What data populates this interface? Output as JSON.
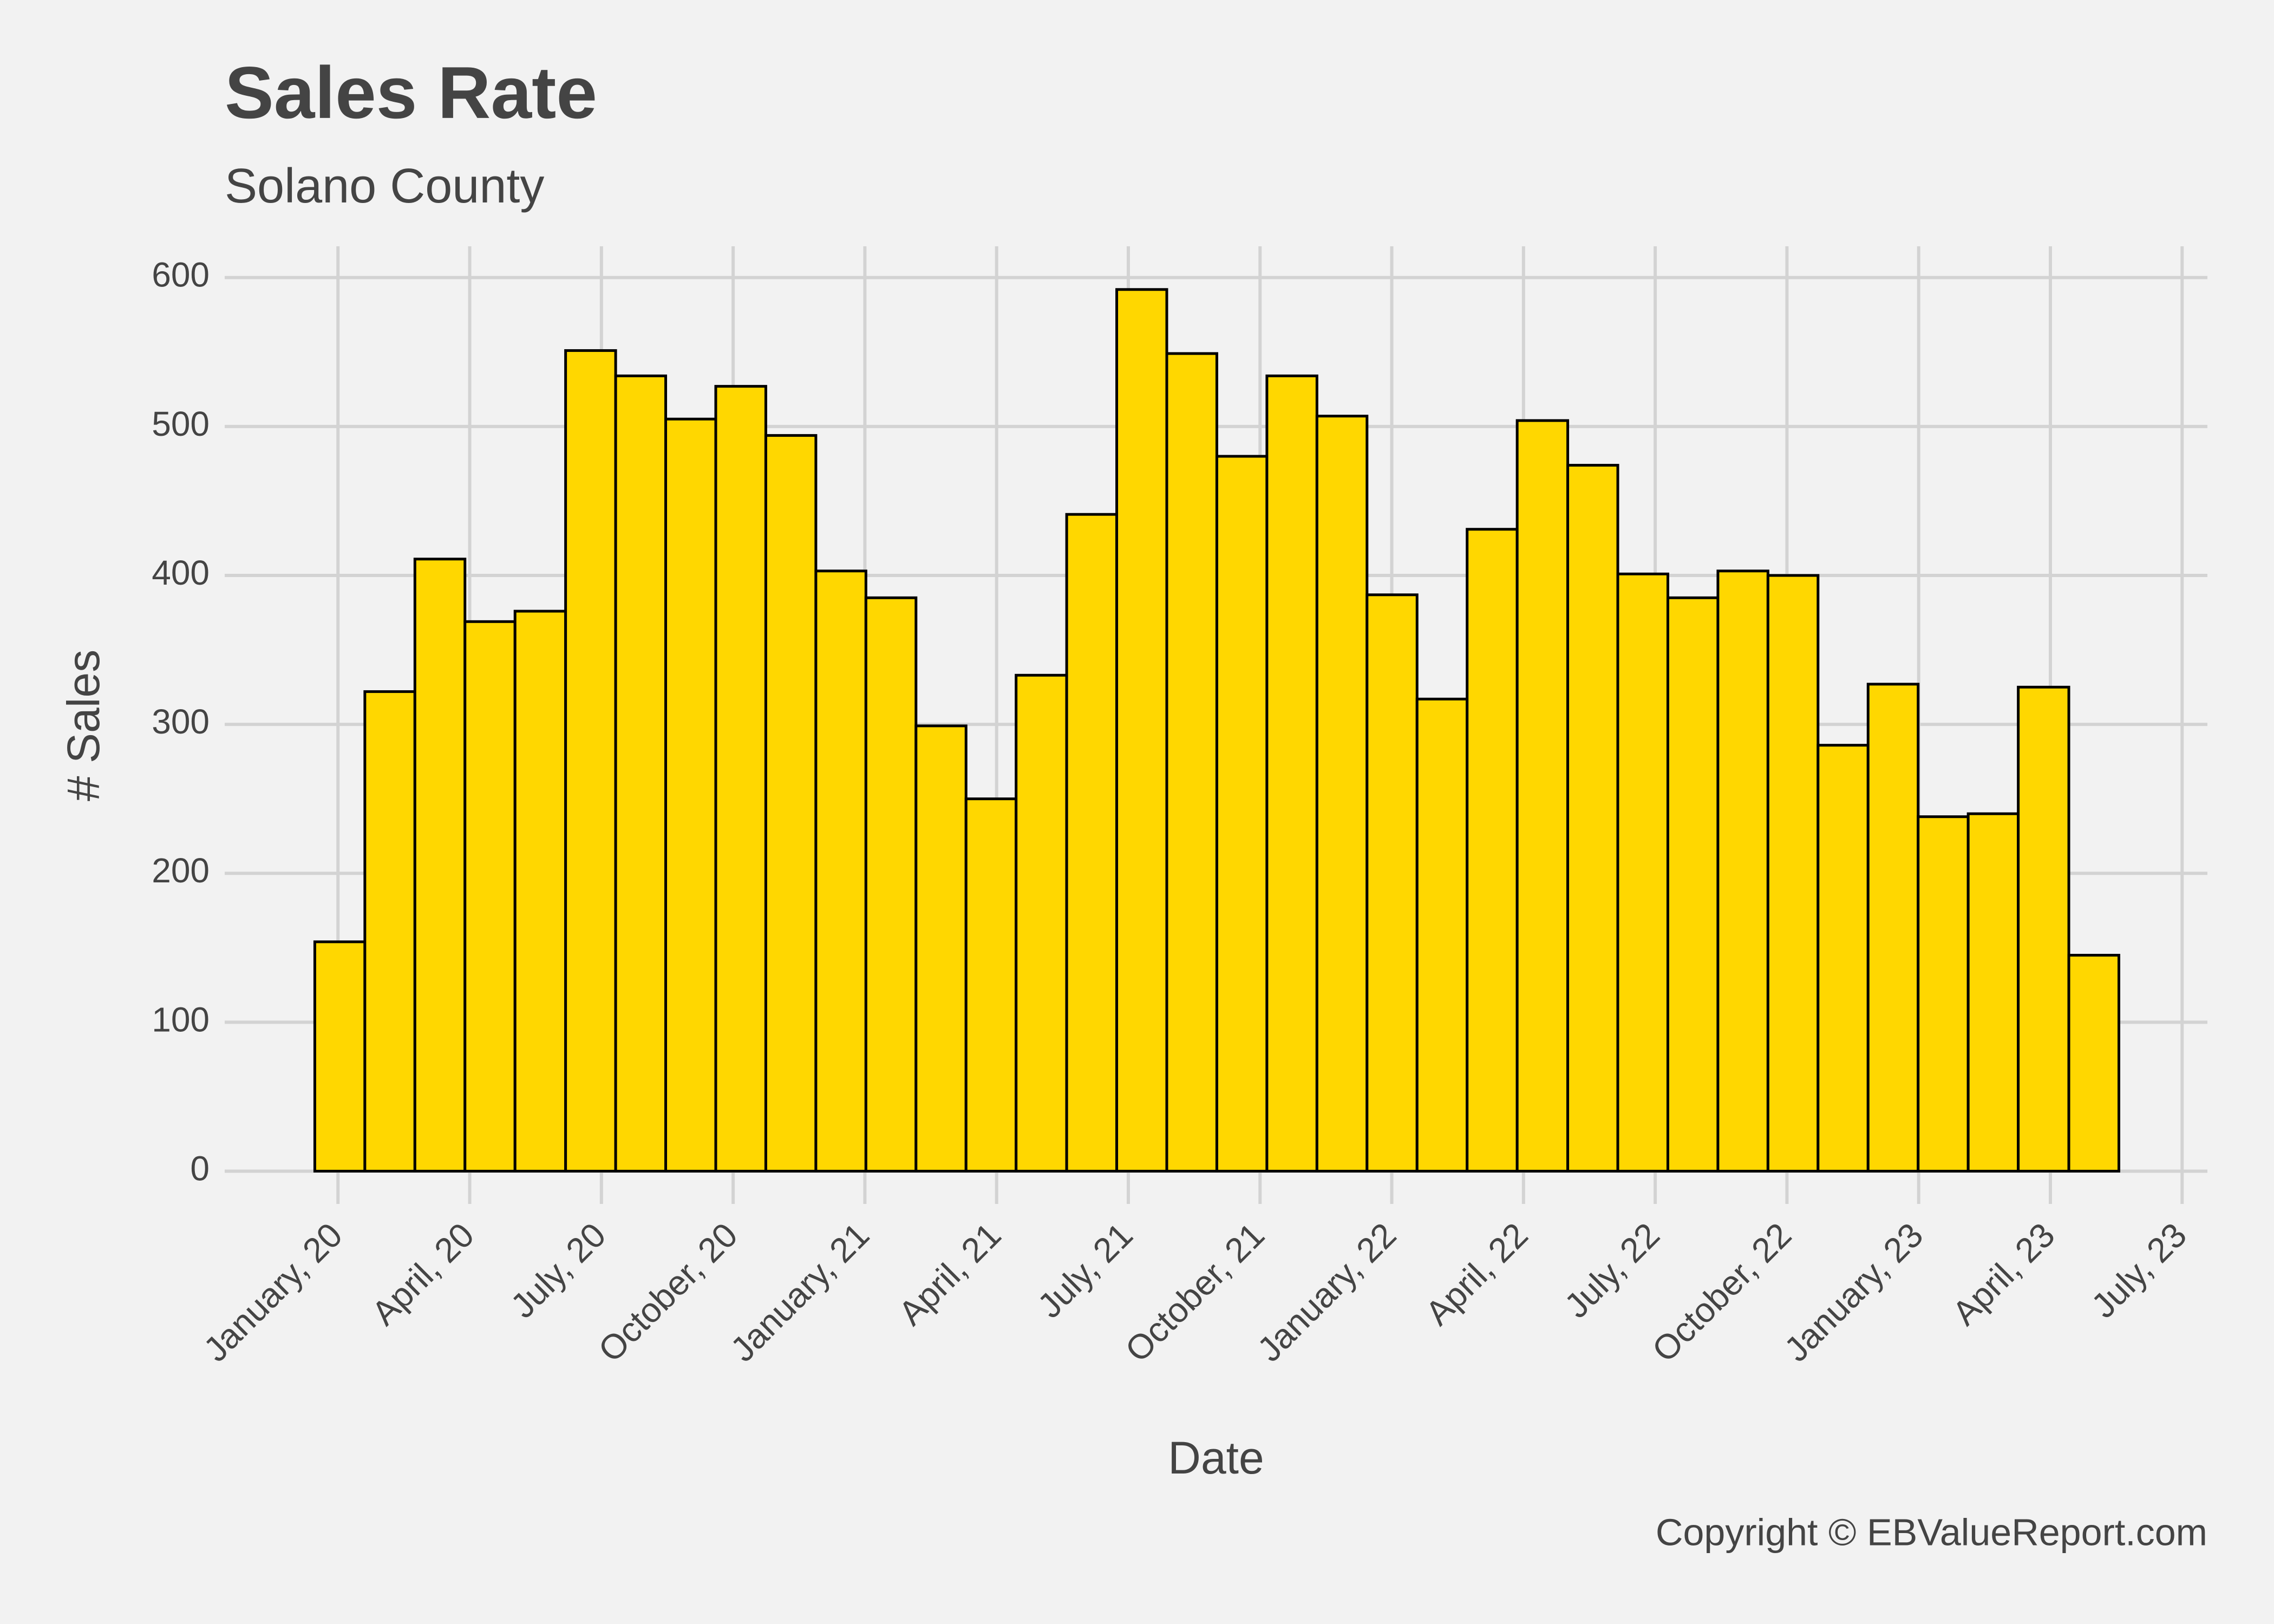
{
  "chart_data": {
    "type": "histogram",
    "title": "Sales Rate",
    "subtitle": "Solano County",
    "x_label": "Date",
    "y_label": "# Sales",
    "caption": "Copyright  © EBValueReport.com",
    "bins": [
      2019.956,
      2020.051,
      2020.146,
      2020.241,
      2020.336,
      2020.432,
      2020.527,
      2020.622,
      2020.717,
      2020.812,
      2020.907,
      2021.002,
      2021.097,
      2021.192,
      2021.287,
      2021.383,
      2021.478,
      2021.573,
      2021.668,
      2021.763,
      2021.858,
      2021.953,
      2022.048,
      2022.143,
      2022.238,
      2022.334,
      2022.429,
      2022.524,
      2022.619,
      2022.714,
      2022.809,
      2022.904,
      2022.999,
      2023.094,
      2023.189,
      2023.285,
      2023.38
    ],
    "values": [
      154,
      322,
      411,
      369,
      376,
      551,
      534,
      505,
      527,
      494,
      403,
      385,
      299,
      250,
      333,
      441,
      592,
      549,
      480,
      534,
      507,
      387,
      317,
      431,
      504,
      474,
      401,
      385,
      403,
      400,
      286,
      327,
      238,
      240,
      325,
      145
    ],
    "color": "#FFD700",
    "edge_color": "#000000",
    "xlim": [
      2019.785,
      2023.548
    ],
    "xticks": [
      {
        "value": 2020,
        "label": "January, 20"
      },
      {
        "value": 2020.25,
        "label": "April, 20"
      },
      {
        "value": 2020.5,
        "label": "July, 20"
      },
      {
        "value": 2020.75,
        "label": "October, 20"
      },
      {
        "value": 2021,
        "label": "January, 21"
      },
      {
        "value": 2021.25,
        "label": "April, 21"
      },
      {
        "value": 2021.5,
        "label": "July, 21"
      },
      {
        "value": 2021.75,
        "label": "October, 21"
      },
      {
        "value": 2022,
        "label": "January, 22"
      },
      {
        "value": 2022.25,
        "label": "April, 22"
      },
      {
        "value": 2022.5,
        "label": "July, 22"
      },
      {
        "value": 2022.75,
        "label": "October, 22"
      },
      {
        "value": 2023,
        "label": "January, 23"
      },
      {
        "value": 2023.25,
        "label": "April, 23"
      },
      {
        "value": 2023.5,
        "label": "July, 23"
      }
    ],
    "ylim": [
      -22,
      621
    ],
    "yticks": [
      0,
      100,
      200,
      300,
      400,
      500,
      600
    ],
    "grid": true
  }
}
